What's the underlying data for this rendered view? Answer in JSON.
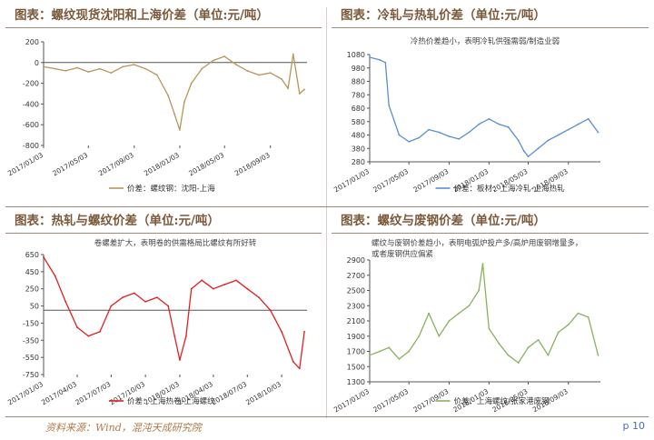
{
  "footer": {
    "source": "资料来源：Wind，混沌天成研究院",
    "page": "p 10"
  },
  "chart_data": [
    {
      "id": "c1",
      "type": "line",
      "title": "图表：螺纹现货沈阳和上海价差（单位:元/吨）",
      "annotation": "",
      "color": "#b8955a",
      "ylim": [
        -800,
        200
      ],
      "yticks": [
        200,
        0,
        -200,
        -400,
        -600,
        -800
      ],
      "xticks": [
        "2017/01/03",
        "2017/05/03",
        "2017/09/03",
        "2018/01/03",
        "2018/05/03",
        "2018/09/03"
      ],
      "series": [
        {
          "name": "价差：螺纹钢：沈阳-上海",
          "x": [
            "2017/01/03",
            "2017/02/03",
            "2017/03/03",
            "2017/04/03",
            "2017/05/03",
            "2017/06/03",
            "2017/07/03",
            "2017/08/03",
            "2017/09/03",
            "2017/10/03",
            "2017/11/03",
            "2017/12/03",
            "2017/12/20",
            "2018/01/03",
            "2018/01/15",
            "2018/02/03",
            "2018/03/03",
            "2018/04/03",
            "2018/05/03",
            "2018/06/03",
            "2018/07/03",
            "2018/08/03",
            "2018/09/03",
            "2018/10/03",
            "2018/10/20",
            "2018/11/03",
            "2018/11/20",
            "2018/12/03"
          ],
          "values": [
            -40,
            -60,
            -80,
            -50,
            -90,
            -60,
            -100,
            -40,
            -20,
            -60,
            -120,
            -320,
            -500,
            -650,
            -380,
            -200,
            -60,
            20,
            60,
            -20,
            -80,
            -120,
            -100,
            -160,
            -250,
            80,
            -300,
            -260
          ]
        }
      ]
    },
    {
      "id": "c2",
      "type": "line",
      "title": "图表：冷轧与热轧价差（单位:元/吨）",
      "annotation": "冷热价差趋小，表明冷轧供强需弱/制造业弱",
      "color": "#5b8fd1",
      "ylim": [
        280,
        1080
      ],
      "yticks": [
        1080,
        980,
        880,
        780,
        680,
        580,
        480,
        380,
        280
      ],
      "xticks": [
        "2017/01/03",
        "2017/05/03",
        "2017/09/03",
        "2018/01/03",
        "2018/05/03",
        "2018/09/03"
      ],
      "series": [
        {
          "name": "价差：板材：上海冷轧-上海热轧",
          "x": [
            "2017/01/03",
            "2017/02/03",
            "2017/02/20",
            "2017/03/03",
            "2017/04/03",
            "2017/05/03",
            "2017/06/03",
            "2017/07/03",
            "2017/08/03",
            "2017/09/03",
            "2017/10/03",
            "2017/11/03",
            "2017/12/03",
            "2018/01/03",
            "2018/02/03",
            "2018/03/03",
            "2018/04/03",
            "2018/04/20",
            "2018/05/03",
            "2018/06/03",
            "2018/07/03",
            "2018/08/03",
            "2018/09/03",
            "2018/10/03",
            "2018/11/03",
            "2018/12/03"
          ],
          "values": [
            1060,
            1040,
            1020,
            700,
            480,
            430,
            460,
            520,
            500,
            470,
            450,
            500,
            560,
            600,
            560,
            540,
            440,
            360,
            320,
            380,
            440,
            480,
            520,
            560,
            600,
            500
          ]
        }
      ]
    },
    {
      "id": "c3",
      "type": "line",
      "title": "图表：热轧与螺纹价差（单位:元/吨）",
      "annotation": "卷螺差扩大，表明卷的供需格局比螺纹有所好转",
      "color": "#e02020",
      "ylim": [
        -750,
        650
      ],
      "yticks": [
        650,
        450,
        250,
        50,
        -150,
        -350,
        -550,
        -750
      ],
      "xticks": [
        "2017/01/03",
        "2017/04/03",
        "2017/07/03",
        "2017/10/03",
        "2018/01/03",
        "2018/04/03",
        "2018/07/03",
        "2018/10/03"
      ],
      "series": [
        {
          "name": "价差：上海热卷-上海螺纹",
          "x": [
            "2017/01/03",
            "2017/02/03",
            "2017/03/03",
            "2017/04/03",
            "2017/05/03",
            "2017/06/03",
            "2017/07/03",
            "2017/08/03",
            "2017/09/03",
            "2017/10/03",
            "2017/11/03",
            "2017/12/03",
            "2017/12/20",
            "2018/01/03",
            "2018/01/20",
            "2018/02/03",
            "2018/03/03",
            "2018/04/03",
            "2018/05/03",
            "2018/06/03",
            "2018/07/03",
            "2018/08/03",
            "2018/09/03",
            "2018/10/03",
            "2018/11/03",
            "2018/11/20",
            "2018/12/03"
          ],
          "values": [
            620,
            400,
            100,
            -200,
            -300,
            -250,
            50,
            150,
            200,
            100,
            150,
            50,
            -300,
            -580,
            -300,
            250,
            350,
            250,
            300,
            350,
            250,
            150,
            0,
            -250,
            -600,
            -680,
            -250
          ]
        }
      ]
    },
    {
      "id": "c4",
      "type": "line",
      "title": "图表：螺纹与废钢价差（单位:元/吨）",
      "annotation": "螺纹与废钢价差趋小，表明电弧炉投产多/高炉用废钢增量多，或者废钢供应偏紧",
      "color": "#8ab060",
      "ylim": [
        1300,
        2900
      ],
      "yticks": [
        2900,
        2700,
        2500,
        2300,
        2100,
        1900,
        1700,
        1500,
        1300
      ],
      "xticks": [
        "2017/01/03",
        "2017/05/03",
        "2017/09/03",
        "2018/01/03",
        "2018/05/03",
        "2018/09/03"
      ],
      "series": [
        {
          "name": "价差：上海螺纹-张家港废钢",
          "x": [
            "2017/01/03",
            "2017/02/03",
            "2017/03/03",
            "2017/04/03",
            "2017/05/03",
            "2017/06/03",
            "2017/07/03",
            "2017/08/03",
            "2017/09/03",
            "2017/10/03",
            "2017/11/03",
            "2017/12/03",
            "2017/12/15",
            "2018/01/03",
            "2018/02/03",
            "2018/03/03",
            "2018/04/03",
            "2018/05/03",
            "2018/06/03",
            "2018/07/03",
            "2018/08/03",
            "2018/09/03",
            "2018/10/03",
            "2018/11/03",
            "2018/12/03"
          ],
          "values": [
            1650,
            1700,
            1750,
            1600,
            1700,
            1900,
            2200,
            1900,
            2100,
            2200,
            2300,
            2500,
            2850,
            2000,
            1800,
            1650,
            1550,
            1750,
            1850,
            1650,
            1950,
            2050,
            2200,
            2150,
            1650
          ]
        }
      ]
    }
  ]
}
